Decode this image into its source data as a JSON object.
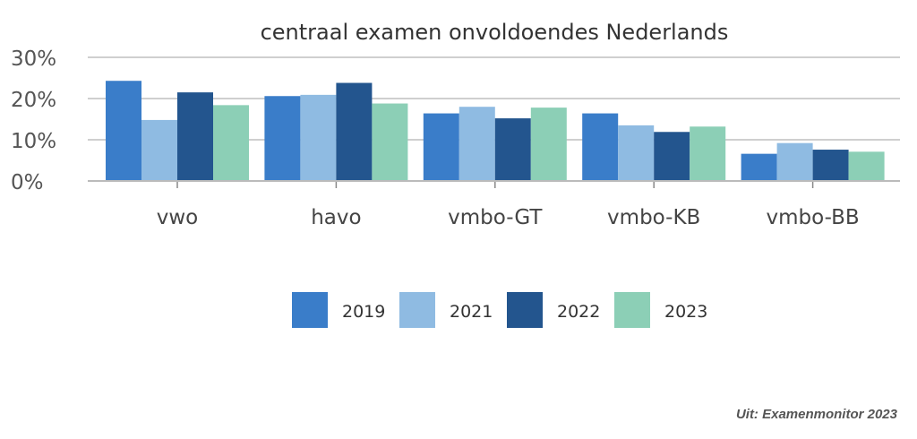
{
  "chart_data": {
    "type": "bar",
    "title": "centraal examen onvoldoendes Nederlands",
    "xlabel": "",
    "ylabel": "",
    "categories": [
      "vwo",
      "havo",
      "vmbo-GT",
      "vmbo-KB",
      "vmbo-BB"
    ],
    "series": [
      {
        "name": "2019",
        "color": "#3a7dc9",
        "values": [
          24.3,
          20.6,
          16.4,
          16.4,
          6.6
        ]
      },
      {
        "name": "2021",
        "color": "#8fbbe2",
        "values": [
          14.8,
          20.9,
          18.0,
          13.5,
          9.2
        ]
      },
      {
        "name": "2022",
        "color": "#23558e",
        "values": [
          21.5,
          23.8,
          15.2,
          11.9,
          7.6
        ]
      },
      {
        "name": "2023",
        "color": "#8ccfb6",
        "values": [
          18.4,
          18.8,
          17.8,
          13.2,
          7.1
        ]
      }
    ],
    "ylim": [
      0,
      30
    ],
    "yticks": [
      "0%",
      "10%",
      "20%",
      "30%"
    ],
    "grid": true,
    "legend_position": "bottom"
  },
  "source": "Uit: Examenmonitor 2023"
}
